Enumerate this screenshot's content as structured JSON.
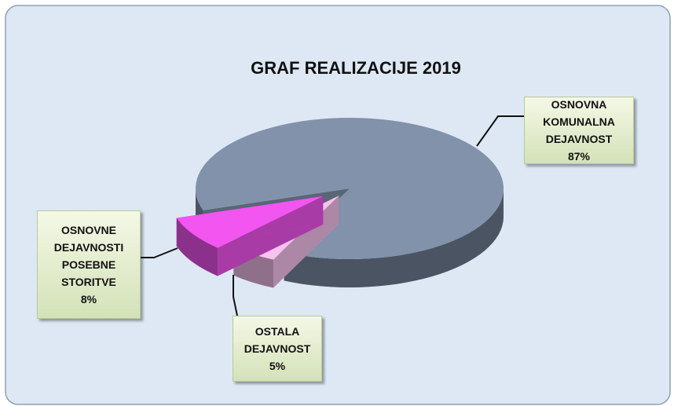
{
  "chart_data": {
    "type": "pie3d",
    "title": "GRAF REALIZACIJE 2019",
    "categories": [
      "OSNOVNA KOMUNALNA DEJAVNOST",
      "OSTALA DEJAVNOST",
      "OSNOVNE DEJAVNOSTI POSEBNE STORITVE"
    ],
    "values": [
      87,
      5,
      8
    ],
    "value_labels": [
      "87%",
      "5%",
      "8%"
    ],
    "colors": [
      "#8192aa",
      "#f6c2ee",
      "#f255f0"
    ]
  }
}
